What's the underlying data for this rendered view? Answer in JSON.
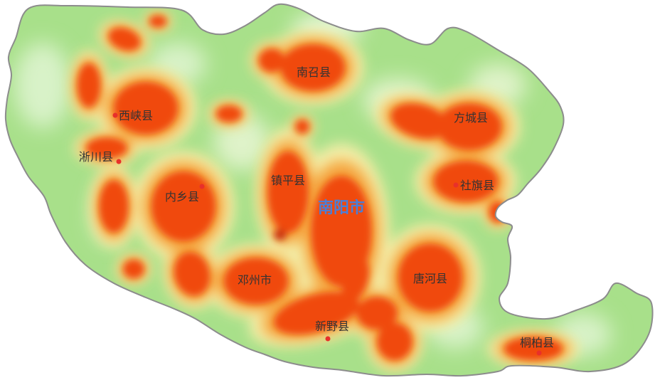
{
  "map": {
    "city_label": "南阳市",
    "counties": [
      {
        "key": "xixia",
        "label": "西峡县"
      },
      {
        "key": "xichuan",
        "label": "淅川县"
      },
      {
        "key": "neixiang",
        "label": "内乡县"
      },
      {
        "key": "zhenping",
        "label": "镇平县"
      },
      {
        "key": "nanzhao",
        "label": "南召县"
      },
      {
        "key": "fangcheng",
        "label": "方城县"
      },
      {
        "key": "sheqi",
        "label": "社旗县"
      },
      {
        "key": "dengzhou",
        "label": "邓州市"
      },
      {
        "key": "xinye",
        "label": "新野县"
      },
      {
        "key": "tanghe",
        "label": "唐河县"
      },
      {
        "key": "tongbai",
        "label": "桐柏县"
      }
    ]
  },
  "colors": {
    "heat_high": "#f04a10",
    "heat_mid": "#f5a640",
    "heat_low_yellow": "#f4eea8",
    "heat_base": "#a8e08a",
    "boundary": "#8c8c8c",
    "county_point": "#e8302a",
    "county_text": "#333333",
    "city_text": "#4a7fd8"
  }
}
